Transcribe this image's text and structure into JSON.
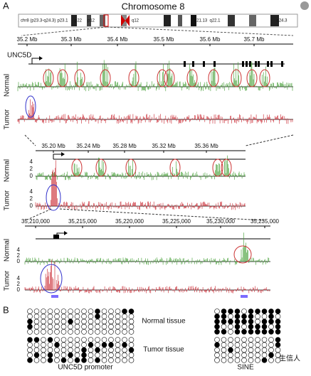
{
  "panel_a": {
    "label": "A",
    "title": "Chromosome 8",
    "ideogram_name": "chr8 (p23.3-q24.3)",
    "bands": [
      "p23.1",
      "p22",
      "p12",
      "q12",
      "q21.13",
      "q22.1",
      "q24.3"
    ],
    "gene": "UNC5D",
    "track_labels": [
      "Normal",
      "Tumor"
    ],
    "view1_ticks": [
      "35.2 Mb",
      "35.3 Mb",
      "35.4 Mb",
      "35.5 Mb",
      "35.6 Mb",
      "35.7 Mb"
    ],
    "view2_ticks": [
      "35.20 Mb",
      "35.24 Mb",
      "35.28 Mb",
      "35.32 Mb",
      "35.36 Mb"
    ],
    "view3_ticks": [
      "35,210,000",
      "35,215,000",
      "35,220,000",
      "35,225,000",
      "35,230,000",
      "35,235,000"
    ],
    "y_ticks": [
      "4",
      "2",
      "0"
    ]
  },
  "panel_b": {
    "label": "B",
    "rows": [
      "Normal tissue",
      "Tumor tissue"
    ],
    "regions": [
      "UNC5D promoter",
      "SINE"
    ]
  },
  "watermark": "生信人"
}
